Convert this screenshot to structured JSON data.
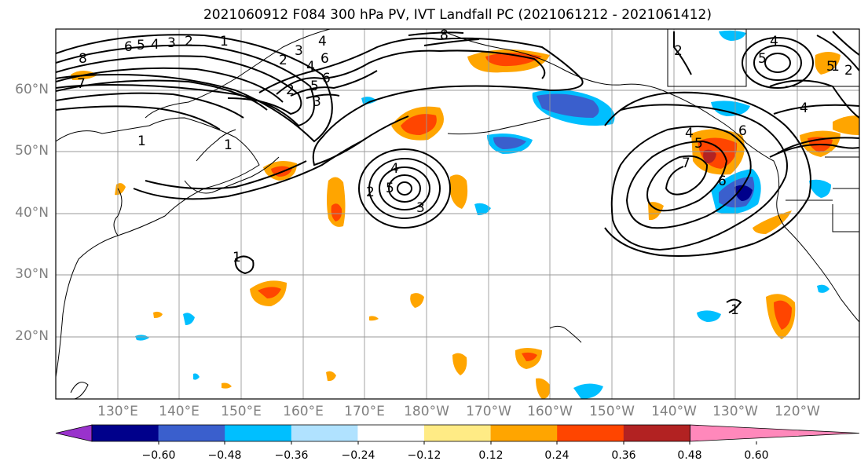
{
  "title": "2021060912 F084 300 hPa PV, IVT Landfall PC (2021061212 - 2021061412)",
  "lat_labels": [
    "60°N",
    "50°N",
    "40°N",
    "30°N",
    "20°N"
  ],
  "lon_labels": [
    "130°E",
    "140°E",
    "150°E",
    "160°E",
    "170°E",
    "180°W",
    "170°W",
    "160°W",
    "150°W",
    "140°W",
    "130°W",
    "120°W"
  ],
  "colorbar": {
    "colors": [
      "#9932cc",
      "#00008b",
      "#3a5fcd",
      "#00bfff",
      "#b0e2ff",
      "#ffffff",
      "#ffeb85",
      "#ffa500",
      "#ff4500",
      "#b22222",
      "#ff88bb"
    ],
    "tick_labels": [
      "−0.60",
      "−0.48",
      "−0.36",
      "−0.24",
      "−0.12",
      "0.12",
      "0.24",
      "0.36",
      "0.48",
      "0.60"
    ]
  },
  "contour_labels": [
    "8",
    "7",
    "6",
    "5",
    "4",
    "3",
    "2",
    "1",
    "1",
    "2",
    "3",
    "4",
    "5",
    "6",
    "6",
    "8",
    "1",
    "2",
    "3",
    "4",
    "5",
    "4",
    "5",
    "6",
    "7",
    "4",
    "5",
    "6",
    "1",
    "4",
    "5",
    "2",
    "2",
    "1",
    "1",
    "2",
    "3",
    "4"
  ]
}
